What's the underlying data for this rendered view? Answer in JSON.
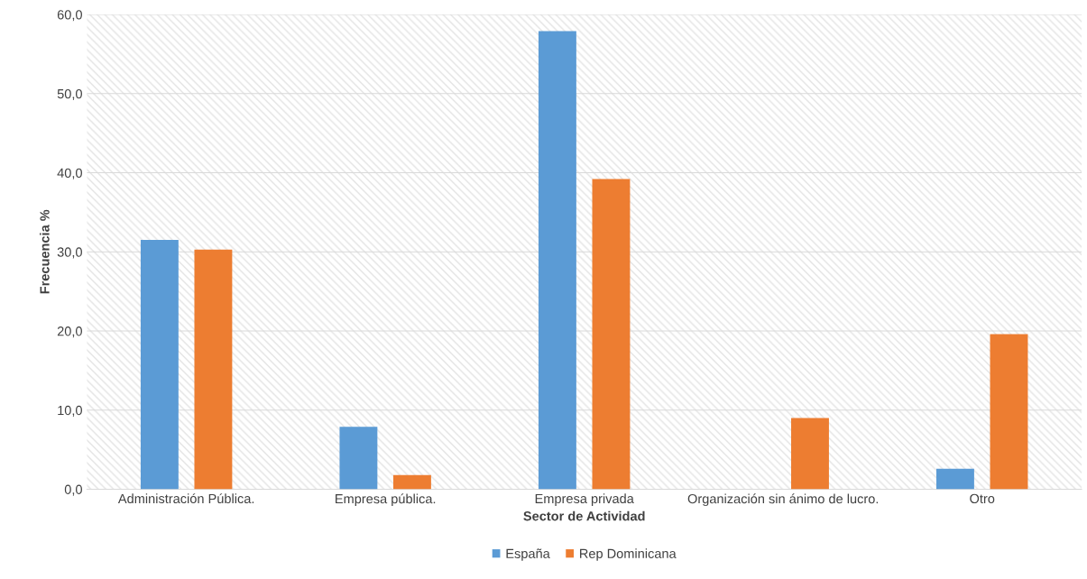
{
  "chart_data": {
    "type": "bar",
    "xlabel": "Sector de Actividad",
    "ylabel": "Frecuencia %",
    "categories": [
      "Administración Pública.",
      "Empresa pública.",
      "Empresa privada",
      "Organización sin ánimo de lucro.",
      "Otro"
    ],
    "series": [
      {
        "name": "España",
        "color": "#5b9bd5",
        "values": [
          31.5,
          7.9,
          57.9,
          0,
          2.6
        ]
      },
      {
        "name": "Rep Dominicana",
        "color": "#ed7d31",
        "values": [
          30.3,
          1.8,
          39.2,
          9.0,
          19.6
        ]
      }
    ],
    "ylim": [
      0,
      60
    ],
    "yticks": [
      {
        "value": 0,
        "label": "0,0"
      },
      {
        "value": 10,
        "label": "10,0"
      },
      {
        "value": 20,
        "label": "20,0"
      },
      {
        "value": 30,
        "label": "30,0"
      },
      {
        "value": 40,
        "label": "40,0"
      },
      {
        "value": 50,
        "label": "50,0"
      },
      {
        "value": 60,
        "label": "60,0"
      }
    ],
    "grid": "y",
    "legend": "bottom"
  }
}
